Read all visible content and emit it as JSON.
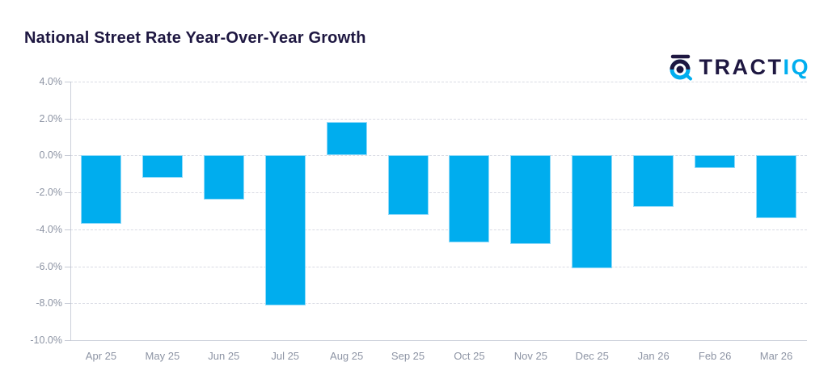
{
  "header": {
    "title": "National Street Rate Year-Over-Year Growth"
  },
  "logo": {
    "text_dark": "TRACT",
    "text_cyan": "IQ",
    "color_dark": "#1e1741",
    "color_cyan": "#00aeef",
    "icon": "target-crosshair-icon"
  },
  "chart_data": {
    "type": "bar",
    "title": "National Street Rate Year-Over-Year Growth",
    "categories": [
      "Apr 25",
      "May 25",
      "Jun 25",
      "Jul 25",
      "Aug 25",
      "Sep 25",
      "Oct 25",
      "Nov 25",
      "Dec 25",
      "Jan 26",
      "Feb 26",
      "Mar 26"
    ],
    "values": [
      -3.7,
      -1.2,
      -2.4,
      -8.1,
      1.8,
      -3.2,
      -4.7,
      -4.8,
      -6.1,
      -2.8,
      -0.7,
      -3.4
    ],
    "unit": "%",
    "bar_color": "#00adee",
    "xlabel": "",
    "ylabel": "",
    "ylim": [
      -10,
      4
    ],
    "yticks": [
      4,
      2,
      0,
      -2,
      -4,
      -6,
      -8,
      -10
    ],
    "ytick_labels": [
      "4.0%",
      "2.0%",
      "0.0%",
      "-2.0%",
      "-4.0%",
      "-6.0%",
      "-8.0%",
      "-10.0%"
    ],
    "grid": "horizontal dashed gridlines, solid baseline at -10%",
    "legend": "none",
    "colors": {
      "title_text": "#1e1741",
      "axis_text": "#8d94a4",
      "gridline": "#d9dbe4",
      "axis_line": "#ccd0da",
      "background": "#ffffff"
    }
  }
}
